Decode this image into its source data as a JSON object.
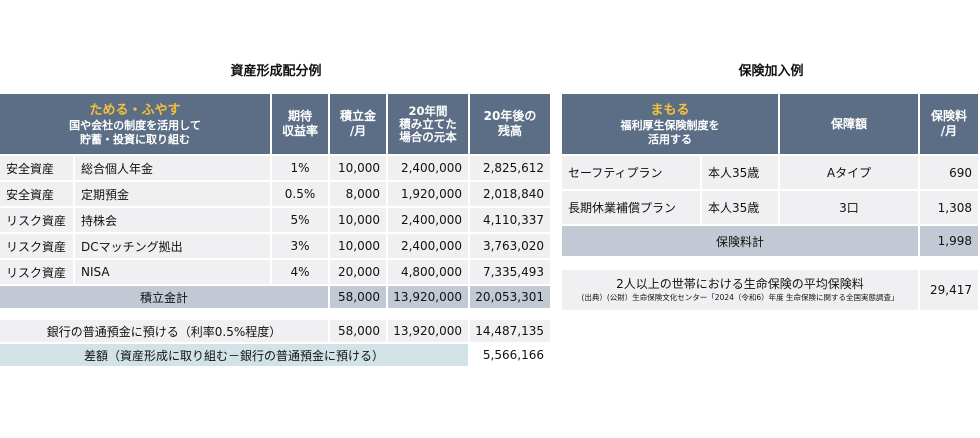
{
  "left_title": "資産形成配分例",
  "right_title": "保険加入例",
  "asset_table": {
    "header": {
      "highlight": "ためる・ふやす",
      "sub1": "国や会社の制度を活用して",
      "sub2": "貯蓄・投資に取り組む",
      "col_return": [
        "期待",
        "収益率"
      ],
      "col_monthly": [
        "積立金",
        "/月"
      ],
      "col_principal": [
        "20年間",
        "積み立てた",
        "場合の元本"
      ],
      "col_balance": [
        "20年後の",
        "残高"
      ]
    },
    "rows": [
      {
        "category": "安全資産",
        "product": "総合個人年金",
        "rate": "1%",
        "monthly": "10,000",
        "principal": "2,400,000",
        "balance": "2,825,612"
      },
      {
        "category": "安全資産",
        "product": "定期預金",
        "rate": "0.5%",
        "monthly": "8,000",
        "principal": "1,920,000",
        "balance": "2,018,840"
      },
      {
        "category": "リスク資産",
        "product": "持株会",
        "rate": "5%",
        "monthly": "10,000",
        "principal": "2,400,000",
        "balance": "4,110,337"
      },
      {
        "category": "リスク資産",
        "product": "DCマッチング拠出",
        "rate": "3%",
        "monthly": "10,000",
        "principal": "2,400,000",
        "balance": "3,763,020"
      },
      {
        "category": "リスク資産",
        "product": "NISA",
        "rate": "4%",
        "monthly": "20,000",
        "principal": "4,800,000",
        "balance": "7,335,493"
      }
    ],
    "total": {
      "label": "積立金計",
      "monthly": "58,000",
      "principal": "13,920,000",
      "balance": "20,053,301"
    }
  },
  "bank": {
    "label": "銀行の普通預金に預ける（利率0.5%程度）",
    "monthly": "58,000",
    "principal": "13,920,000",
    "balance": "14,487,135"
  },
  "difference": {
    "label": "差額（資産形成に取り組む－銀行の普通預金に預ける）",
    "value": "5,566,166"
  },
  "insurance_table": {
    "header": {
      "highlight": "まもる",
      "sub1": "福利厚生保険制度を",
      "sub2": "活用する",
      "col_coverage": "保障額",
      "col_premium": [
        "保険料",
        "/月"
      ]
    },
    "rows": [
      {
        "plan": "セーフティプラン",
        "person": "本人35歳",
        "coverage": "Aタイプ",
        "premium": "690"
      },
      {
        "plan": "長期休業補償プラン",
        "person": "本人35歳",
        "coverage": "3口",
        "premium": "1,308"
      }
    ],
    "total": {
      "label": "保険料計",
      "premium": "1,998"
    }
  },
  "average": {
    "label": "2人以上の世帯における生命保険の平均保険料",
    "source": "(出典）(公財）生命保険文化センター「2024（令和6）年度 生命保険に関する全国実態調査」",
    "value": "29,417"
  }
}
